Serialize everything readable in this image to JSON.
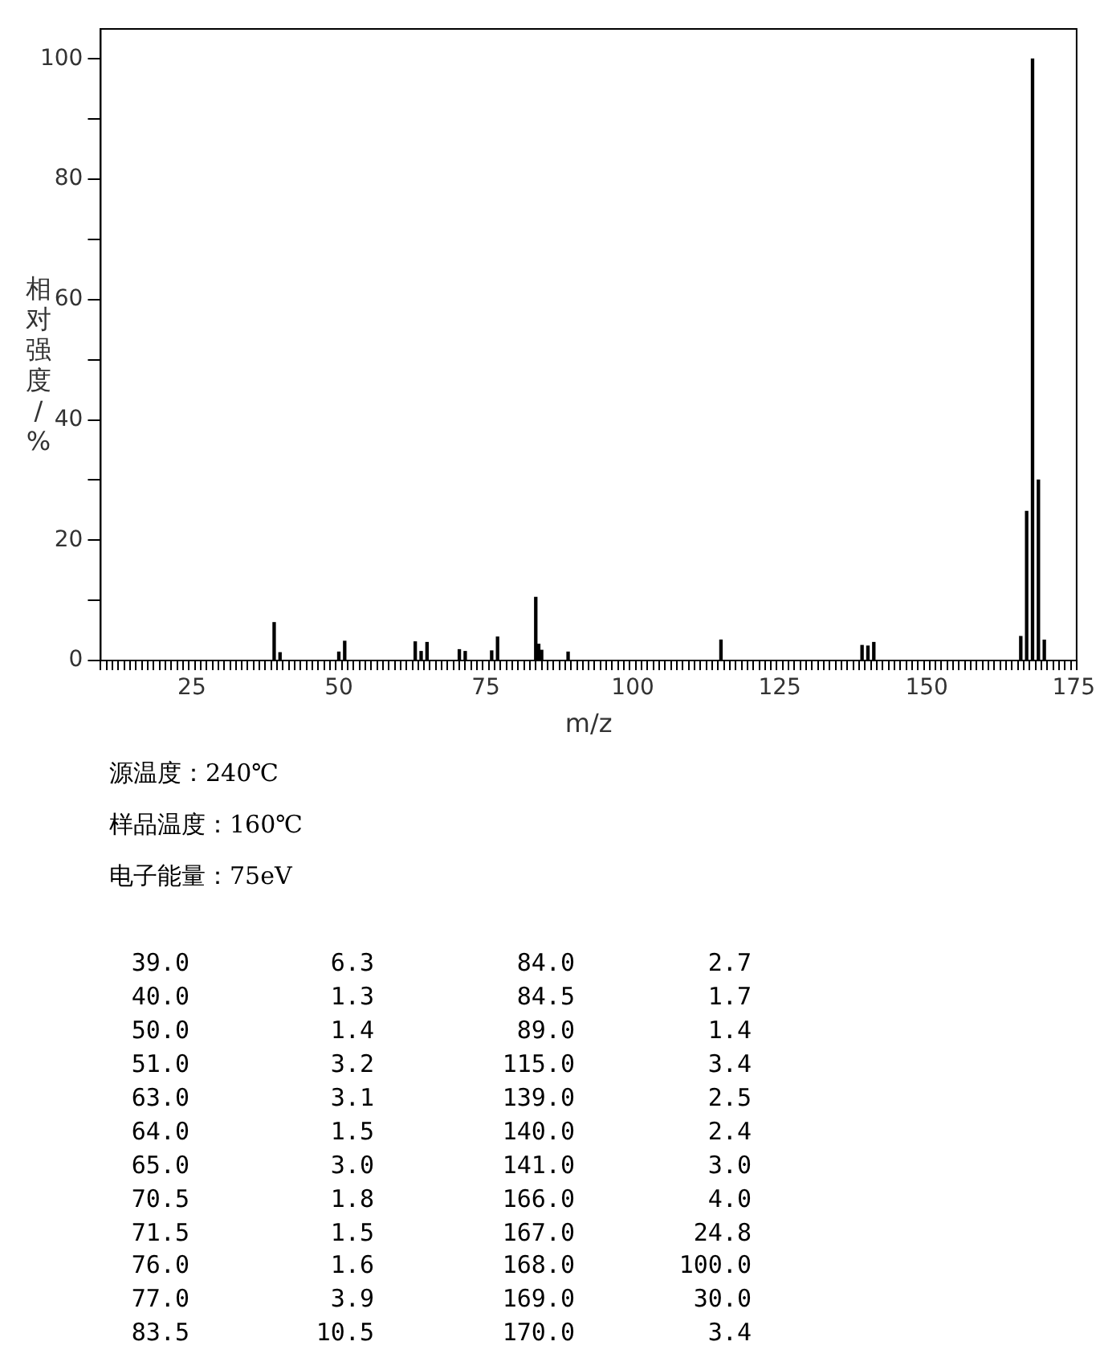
{
  "chart_data": {
    "type": "bar",
    "xlabel": "m/z",
    "ylabel": "相对强度/%",
    "x": [
      39,
      40,
      50,
      51,
      63,
      64,
      65,
      70.5,
      71.5,
      76,
      77,
      83.5,
      84,
      84.5,
      89,
      115,
      139,
      140,
      141,
      166,
      167,
      168,
      169,
      170
    ],
    "values": [
      6.3,
      1.3,
      1.4,
      3.2,
      3.1,
      1.5,
      3.0,
      1.8,
      1.5,
      1.6,
      3.9,
      10.5,
      2.7,
      1.7,
      1.4,
      3.4,
      2.5,
      2.4,
      3.0,
      4.0,
      24.8,
      100,
      30.0,
      3.4
    ],
    "color": "#000000",
    "xlim": [
      10,
      175
    ],
    "ylim": [
      0,
      105
    ],
    "yticks": [
      0,
      {
        "value": 10,
        "label": null
      },
      20,
      {
        "value": 30,
        "label": null
      },
      40,
      {
        "value": 50,
        "label": null
      },
      60,
      {
        "value": 70,
        "label": null
      },
      80,
      {
        "value": 90,
        "label": null
      },
      100
    ],
    "xticks": [
      {
        "value": 10,
        "label": null
      },
      {
        "value": 11,
        "label": null
      },
      {
        "value": 12,
        "label": null
      },
      {
        "value": 13,
        "label": null
      },
      {
        "value": 14,
        "label": null
      },
      {
        "value": 15,
        "label": null
      },
      {
        "value": 16,
        "label": null
      },
      {
        "value": 17,
        "label": null
      },
      {
        "value": 18,
        "label": null
      },
      {
        "value": 19,
        "label": null
      },
      {
        "value": 20,
        "label": null
      },
      {
        "value": 21,
        "label": null
      },
      {
        "value": 22,
        "label": null
      },
      {
        "value": 23,
        "label": null
      },
      {
        "value": 24,
        "label": null
      },
      25,
      {
        "value": 26,
        "label": null
      },
      {
        "value": 27,
        "label": null
      },
      {
        "value": 28,
        "label": null
      },
      {
        "value": 29,
        "label": null
      },
      {
        "value": 30,
        "label": null
      },
      {
        "value": 31,
        "label": null
      },
      {
        "value": 32,
        "label": null
      },
      {
        "value": 33,
        "label": null
      },
      {
        "value": 34,
        "label": null
      },
      {
        "value": 35,
        "label": null
      },
      {
        "value": 36,
        "label": null
      },
      {
        "value": 37,
        "label": null
      },
      {
        "value": 38,
        "label": null
      },
      {
        "value": 39,
        "label": null
      },
      {
        "value": 40,
        "label": null
      },
      {
        "value": 41,
        "label": null
      },
      {
        "value": 42,
        "label": null
      },
      {
        "value": 43,
        "label": null
      },
      {
        "value": 44,
        "label": null
      },
      {
        "value": 45,
        "label": null
      },
      {
        "value": 46,
        "label": null
      },
      {
        "value": 47,
        "label": null
      },
      {
        "value": 48,
        "label": null
      },
      {
        "value": 49,
        "label": null
      },
      50,
      {
        "value": 51,
        "label": null
      },
      {
        "value": 52,
        "label": null
      },
      {
        "value": 53,
        "label": null
      },
      {
        "value": 54,
        "label": null
      },
      {
        "value": 55,
        "label": null
      },
      {
        "value": 56,
        "label": null
      },
      {
        "value": 57,
        "label": null
      },
      {
        "value": 58,
        "label": null
      },
      {
        "value": 59,
        "label": null
      },
      {
        "value": 60,
        "label": null
      },
      {
        "value": 61,
        "label": null
      },
      {
        "value": 62,
        "label": null
      },
      {
        "value": 63,
        "label": null
      },
      {
        "value": 64,
        "label": null
      },
      {
        "value": 65,
        "label": null
      },
      {
        "value": 66,
        "label": null
      },
      {
        "value": 67,
        "label": null
      },
      {
        "value": 68,
        "label": null
      },
      {
        "value": 69,
        "label": null
      },
      {
        "value": 70,
        "label": null
      },
      {
        "value": 71,
        "label": null
      },
      {
        "value": 72,
        "label": null
      },
      {
        "value": 73,
        "label": null
      },
      {
        "value": 74,
        "label": null
      },
      75,
      {
        "value": 76,
        "label": null
      },
      {
        "value": 77,
        "label": null
      },
      {
        "value": 78,
        "label": null
      },
      {
        "value": 79,
        "label": null
      },
      {
        "value": 80,
        "label": null
      },
      {
        "value": 81,
        "label": null
      },
      {
        "value": 82,
        "label": null
      },
      {
        "value": 83,
        "label": null
      },
      {
        "value": 84,
        "label": null
      },
      {
        "value": 85,
        "label": null
      },
      {
        "value": 86,
        "label": null
      },
      {
        "value": 87,
        "label": null
      },
      {
        "value": 88,
        "label": null
      },
      {
        "value": 89,
        "label": null
      },
      {
        "value": 90,
        "label": null
      },
      {
        "value": 91,
        "label": null
      },
      {
        "value": 92,
        "label": null
      },
      {
        "value": 93,
        "label": null
      },
      {
        "value": 94,
        "label": null
      },
      {
        "value": 95,
        "label": null
      },
      {
        "value": 96,
        "label": null
      },
      {
        "value": 97,
        "label": null
      },
      {
        "value": 98,
        "label": null
      },
      {
        "value": 99,
        "label": null
      },
      100,
      {
        "value": 101,
        "label": null
      },
      {
        "value": 102,
        "label": null
      },
      {
        "value": 103,
        "label": null
      },
      {
        "value": 104,
        "label": null
      },
      {
        "value": 105,
        "label": null
      },
      {
        "value": 106,
        "label": null
      },
      {
        "value": 107,
        "label": null
      },
      {
        "value": 108,
        "label": null
      },
      {
        "value": 109,
        "label": null
      },
      {
        "value": 110,
        "label": null
      },
      {
        "value": 111,
        "label": null
      },
      {
        "value": 112,
        "label": null
      },
      {
        "value": 113,
        "label": null
      },
      {
        "value": 114,
        "label": null
      },
      {
        "value": 115,
        "label": null
      },
      {
        "value": 116,
        "label": null
      },
      {
        "value": 117,
        "label": null
      },
      {
        "value": 118,
        "label": null
      },
      {
        "value": 119,
        "label": null
      },
      {
        "value": 120,
        "label": null
      },
      {
        "value": 121,
        "label": null
      },
      {
        "value": 122,
        "label": null
      },
      {
        "value": 123,
        "label": null
      },
      {
        "value": 124,
        "label": null
      },
      125,
      {
        "value": 126,
        "label": null
      },
      {
        "value": 127,
        "label": null
      },
      {
        "value": 128,
        "label": null
      },
      {
        "value": 129,
        "label": null
      },
      {
        "value": 130,
        "label": null
      },
      {
        "value": 131,
        "label": null
      },
      {
        "value": 132,
        "label": null
      },
      {
        "value": 133,
        "label": null
      },
      {
        "value": 134,
        "label": null
      },
      {
        "value": 135,
        "label": null
      },
      {
        "value": 136,
        "label": null
      },
      {
        "value": 137,
        "label": null
      },
      {
        "value": 138,
        "label": null
      },
      {
        "value": 139,
        "label": null
      },
      {
        "value": 140,
        "label": null
      },
      {
        "value": 141,
        "label": null
      },
      {
        "value": 142,
        "label": null
      },
      {
        "value": 143,
        "label": null
      },
      {
        "value": 144,
        "label": null
      },
      {
        "value": 145,
        "label": null
      },
      {
        "value": 146,
        "label": null
      },
      {
        "value": 147,
        "label": null
      },
      {
        "value": 148,
        "label": null
      },
      {
        "value": 149,
        "label": null
      },
      150,
      {
        "value": 151,
        "label": null
      },
      {
        "value": 152,
        "label": null
      },
      {
        "value": 153,
        "label": null
      },
      {
        "value": 154,
        "label": null
      },
      {
        "value": 155,
        "label": null
      },
      {
        "value": 156,
        "label": null
      },
      {
        "value": 157,
        "label": null
      },
      {
        "value": 158,
        "label": null
      },
      {
        "value": 159,
        "label": null
      },
      {
        "value": 160,
        "label": null
      },
      {
        "value": 161,
        "label": null
      },
      {
        "value": 162,
        "label": null
      },
      {
        "value": 163,
        "label": null
      },
      {
        "value": 164,
        "label": null
      },
      {
        "value": 165,
        "label": null
      },
      {
        "value": 166,
        "label": null
      },
      {
        "value": 167,
        "label": null
      },
      {
        "value": 168,
        "label": null
      },
      {
        "value": 169,
        "label": null
      },
      {
        "value": 170,
        "label": null
      },
      {
        "value": 171,
        "label": null
      },
      {
        "value": 172,
        "label": null
      },
      {
        "value": 173,
        "label": null
      },
      {
        "value": 174,
        "label": null
      },
      175
    ],
    "annotations": [
      "源温度：240℃",
      "样品温度：160℃",
      "电子能量：75eV",
      "39.0",
      "6.3",
      "84.0",
      "2.7",
      "40.0",
      "1.3",
      "84.5",
      "1.7",
      "50.0",
      "1.4",
      "89.0",
      "1.4",
      "51.0",
      "3.2",
      "115.0",
      "3.4",
      "63.0",
      "3.1",
      "139.0",
      "2.5",
      "64.0",
      "1.5",
      "140.0",
      "2.4",
      "65.0",
      "3.0",
      "141.0",
      "3.0",
      "70.5",
      "1.8",
      "166.0",
      "4.0",
      "71.5",
      "1.5",
      "167.0",
      "24.8",
      "76.0",
      "1.6",
      "168.0",
      "100.0",
      "77.0",
      "3.9",
      "169.0",
      "30.0",
      "83.5",
      "10.5",
      "170.0",
      "3.4"
    ]
  }
}
